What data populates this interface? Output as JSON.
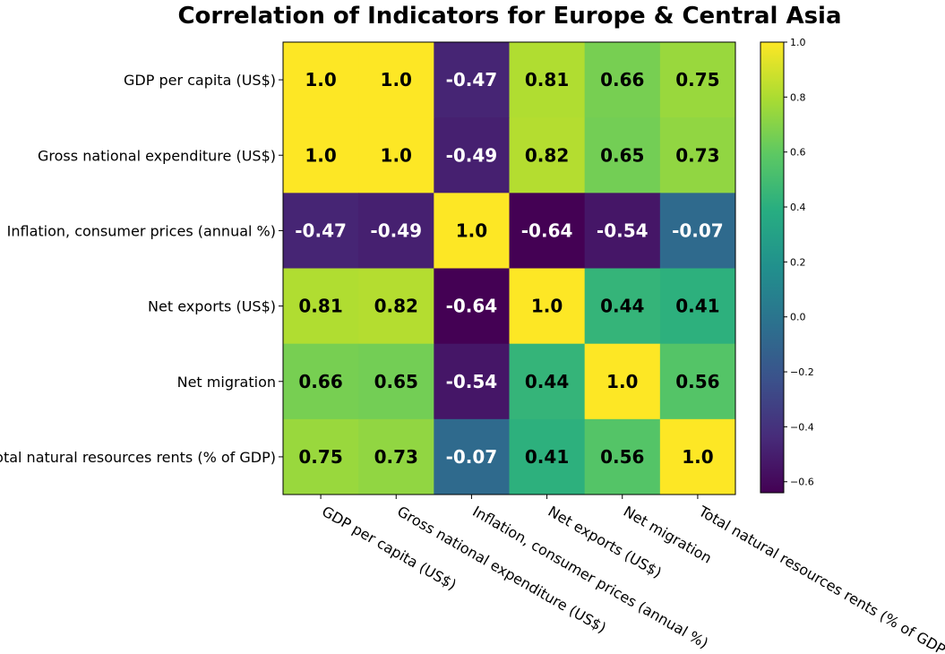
{
  "chart_data": {
    "type": "heatmap",
    "title": "Correlation of Indicators for Europe & Central Asia",
    "rows": [
      "GDP per capita (US$)",
      "Gross national expenditure (US$)",
      "Inflation, consumer prices (annual %)",
      "Net exports (US$)",
      "Net migration",
      "Total natural resources rents (% of GDP)"
    ],
    "columns": [
      "GDP per capita (US$)",
      "Gross national expenditure (US$)",
      "Inflation, consumer prices (annual %)",
      "Net exports (US$)",
      "Net migration",
      "Total natural resources rents (% of GDP)"
    ],
    "values": [
      [
        1.0,
        1.0,
        -0.47,
        0.81,
        0.66,
        0.75
      ],
      [
        1.0,
        1.0,
        -0.49,
        0.82,
        0.65,
        0.73
      ],
      [
        -0.47,
        -0.49,
        1.0,
        -0.64,
        -0.54,
        -0.07
      ],
      [
        0.81,
        0.82,
        -0.64,
        1.0,
        0.44,
        0.41
      ],
      [
        0.66,
        0.65,
        -0.54,
        0.44,
        1.0,
        0.56
      ],
      [
        0.75,
        0.73,
        -0.07,
        0.41,
        0.56,
        1.0
      ]
    ],
    "labels": [
      [
        "1.0",
        "1.0",
        "-0.47",
        "0.81",
        "0.66",
        "0.75"
      ],
      [
        "1.0",
        "1.0",
        "-0.49",
        "0.82",
        "0.65",
        "0.73"
      ],
      [
        "-0.47",
        "-0.49",
        "1.0",
        "-0.64",
        "-0.54",
        "-0.07"
      ],
      [
        "0.81",
        "0.82",
        "-0.64",
        "1.0",
        "0.44",
        "0.41"
      ],
      [
        "0.66",
        "0.65",
        "-0.54",
        "0.44",
        "1.0",
        "0.56"
      ],
      [
        "0.75",
        "0.73",
        "-0.07",
        "0.41",
        "0.56",
        "1.0"
      ]
    ],
    "colormap": "viridis",
    "vmin": -0.64,
    "vmax": 1.0,
    "colorbar_ticks": [
      "1.0",
      "0.8",
      "0.6",
      "0.4",
      "0.2",
      "0.0",
      "−0.2",
      "−0.4",
      "−0.6"
    ],
    "colorbar_tick_values": [
      1.0,
      0.8,
      0.6,
      0.4,
      0.2,
      0.0,
      -0.2,
      -0.4,
      -0.6
    ],
    "text_color_dark": "#000000",
    "text_color_light": "#ffffff"
  }
}
